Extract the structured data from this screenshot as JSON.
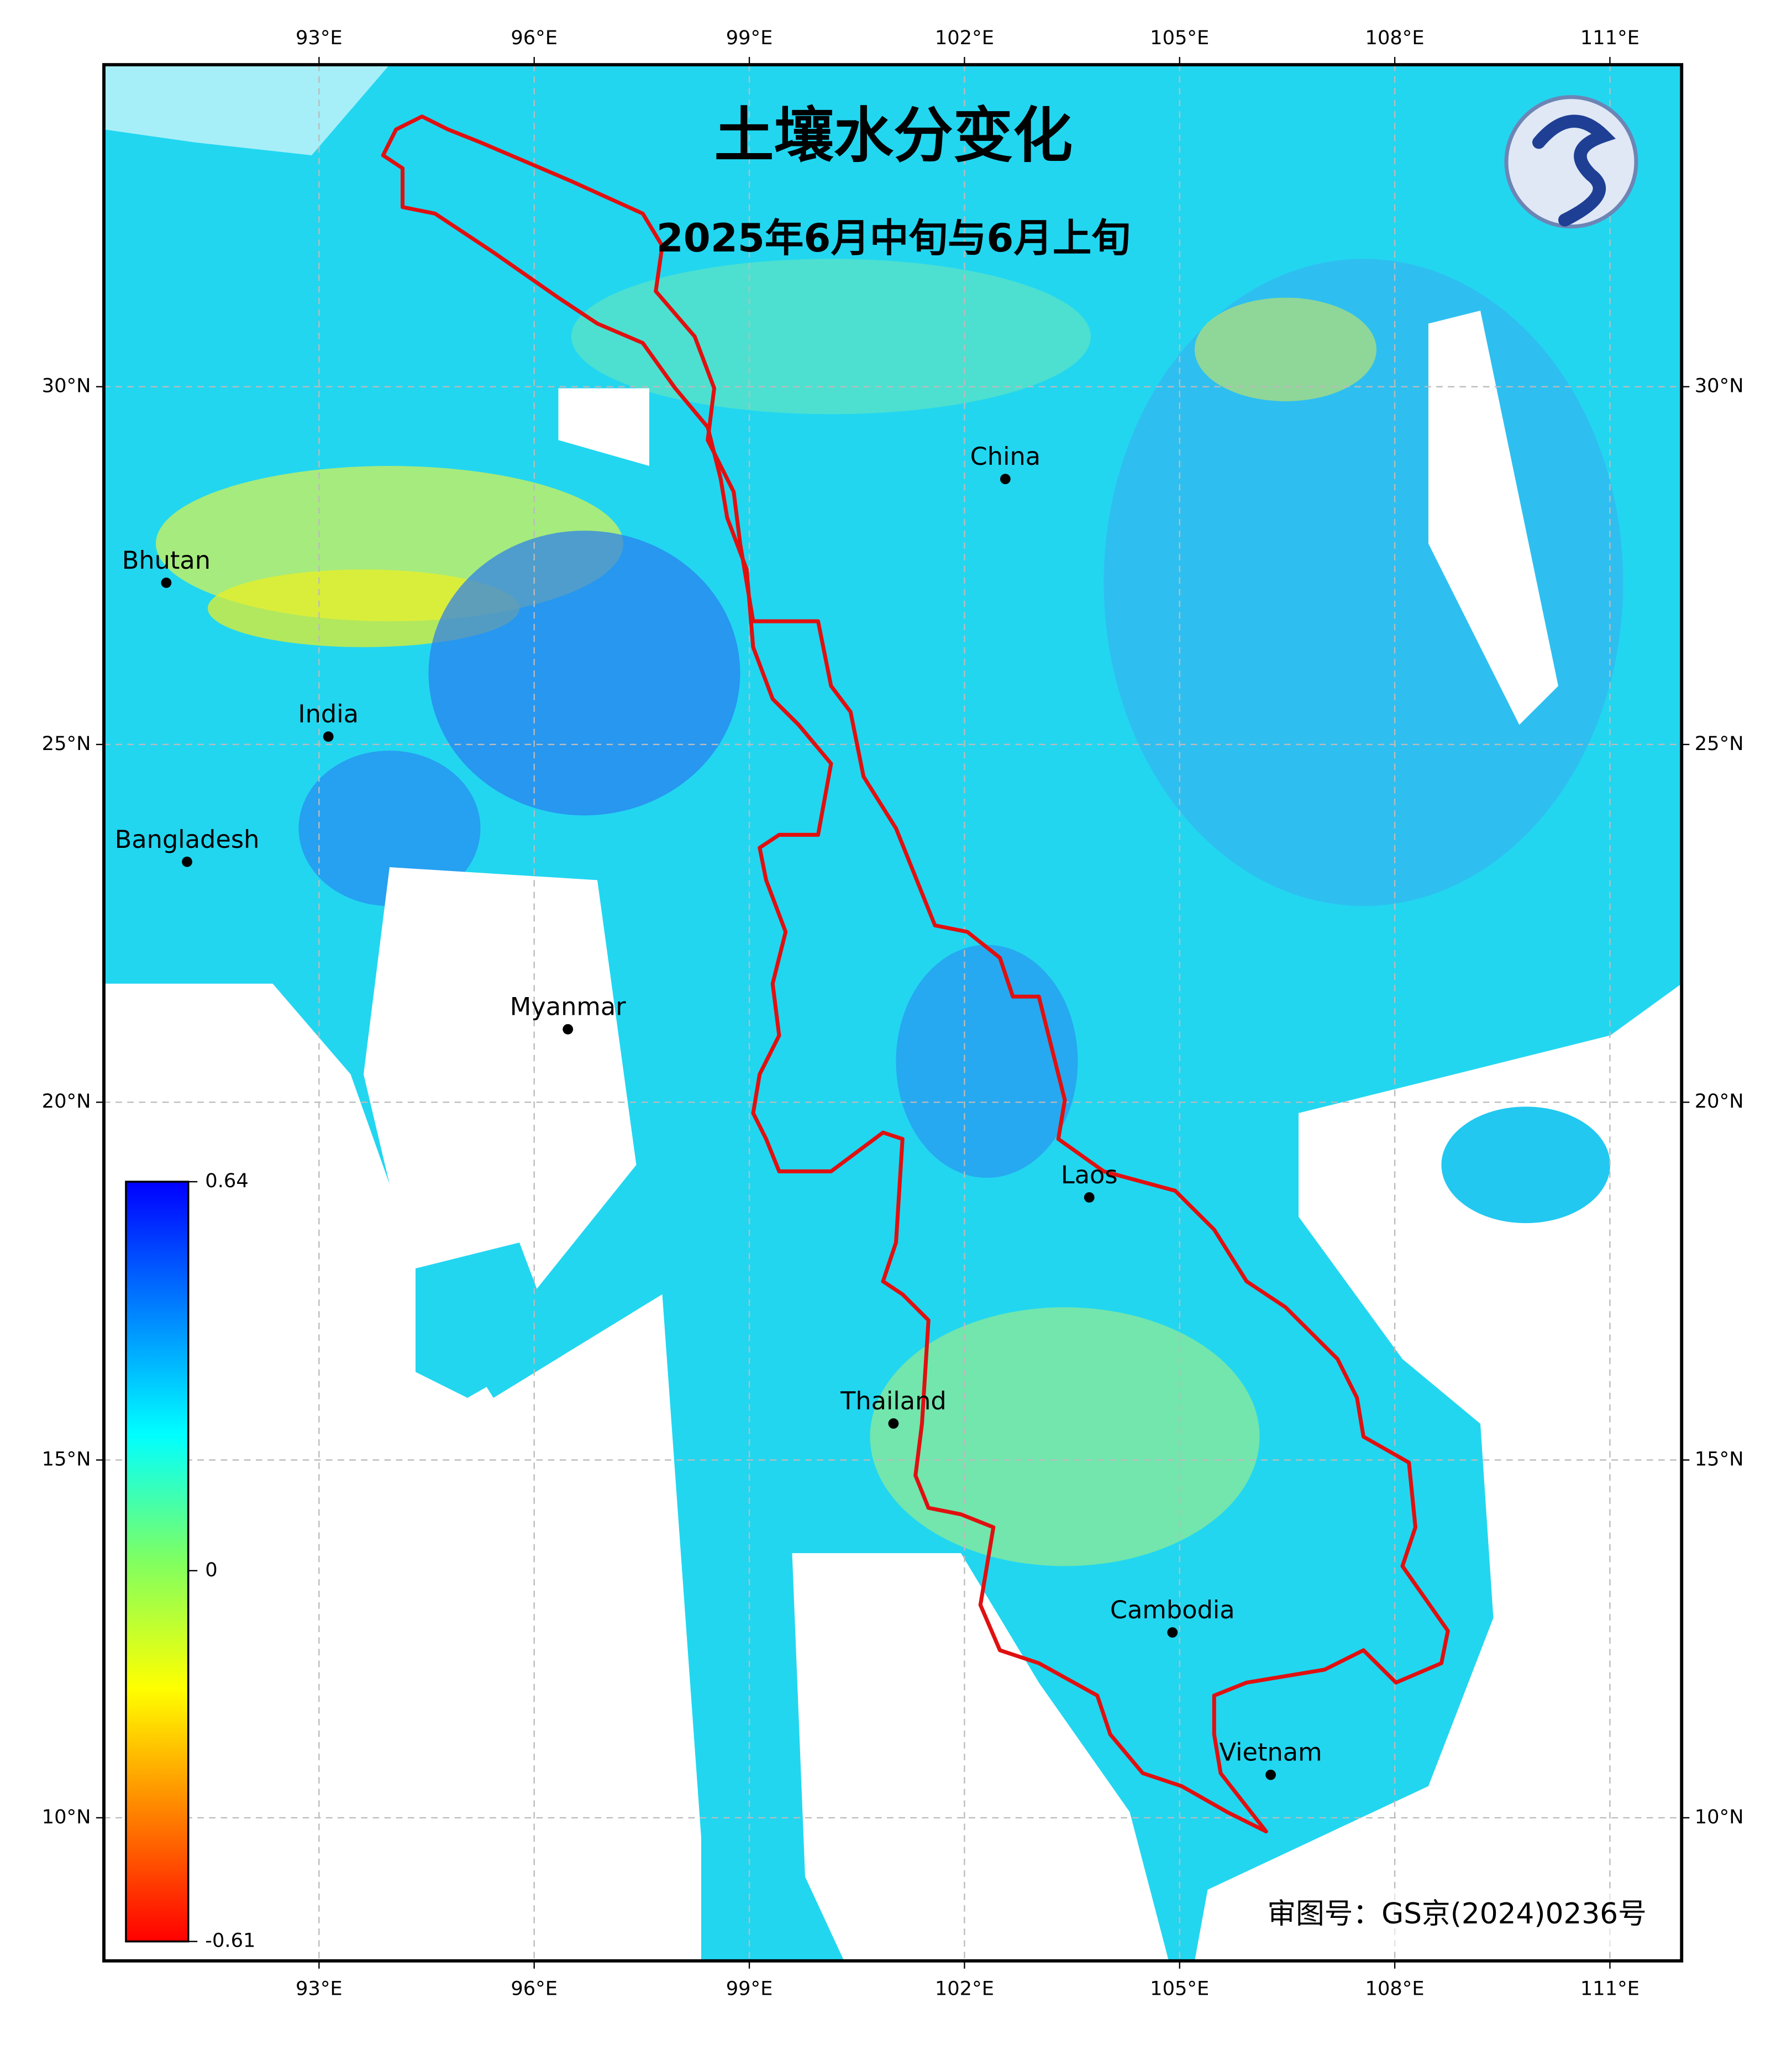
{
  "title": "土壤水分变化",
  "subtitle": "2025年6月中旬与6月上旬",
  "note": "审图号：GS京(2024)0236号",
  "map": {
    "xlim": [
      90,
      112
    ],
    "ylim": [
      8,
      34.5
    ],
    "grid": true,
    "xticks": [
      {
        "value": 93,
        "label": "93°E"
      },
      {
        "value": 96,
        "label": "96°E"
      },
      {
        "value": 99,
        "label": "99°E"
      },
      {
        "value": 102,
        "label": "102°E"
      },
      {
        "value": 105,
        "label": "105°E"
      },
      {
        "value": 108,
        "label": "108°E"
      },
      {
        "value": 111,
        "label": "111°E"
      }
    ],
    "yticks": [
      {
        "value": 10,
        "label": "10°N"
      },
      {
        "value": 15,
        "label": "15°N"
      },
      {
        "value": 20,
        "label": "20°N"
      },
      {
        "value": 25,
        "label": "25°N"
      },
      {
        "value": 30,
        "label": "30°N"
      }
    ],
    "places": [
      {
        "name": "China",
        "lon": 102.57,
        "lat": 28.71
      },
      {
        "name": "Bhutan",
        "lon": 90.87,
        "lat": 27.26
      },
      {
        "name": "India",
        "lon": 93.13,
        "lat": 25.11
      },
      {
        "name": "Bangladesh",
        "lon": 91.16,
        "lat": 23.36
      },
      {
        "name": "Myanmar",
        "lon": 96.47,
        "lat": 21.02
      },
      {
        "name": "Laos",
        "lon": 103.74,
        "lat": 18.67
      },
      {
        "name": "Thailand",
        "lon": 101.01,
        "lat": 15.51
      },
      {
        "name": "Cambodia",
        "lon": 104.9,
        "lat": 12.59
      },
      {
        "name": "Vietnam",
        "lon": 106.27,
        "lat": 10.6
      }
    ],
    "colorbar": {
      "lim": [
        -0.61,
        0.64
      ],
      "ticks": [
        0.64,
        0,
        -0.61
      ],
      "colors": [
        "#ff0000",
        "#ff8000",
        "#ffff00",
        "#80ff60",
        "#00ffff",
        "#0080ff",
        "#0000ff"
      ]
    }
  }
}
